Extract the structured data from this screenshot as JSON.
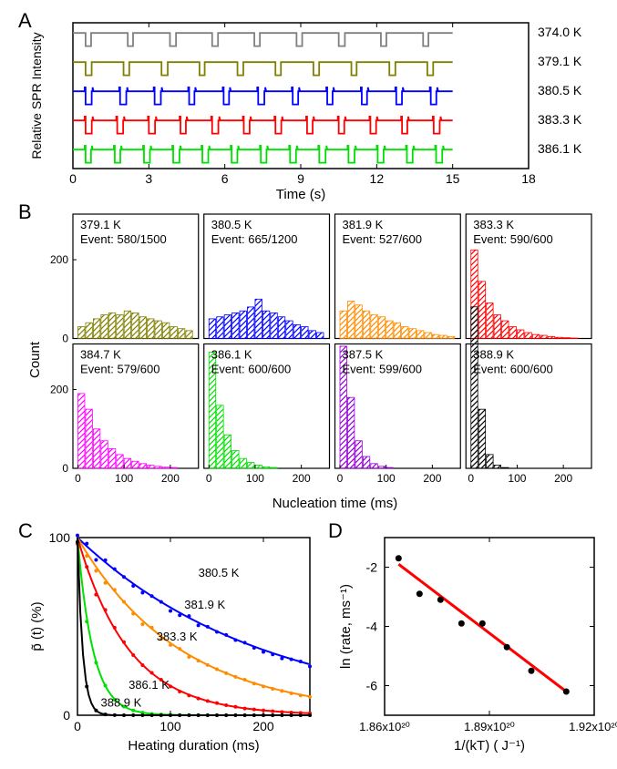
{
  "panelA": {
    "label": "A",
    "ylabel": "Relative SPR Intensity",
    "xlabel": "Time (s)",
    "xlim": [
      0,
      18
    ],
    "xticks": [
      0,
      3,
      6,
      9,
      12,
      15,
      18
    ],
    "traces": [
      {
        "temp": "374.0 K",
        "color": "#808080",
        "y_offset": 4
      },
      {
        "temp": "379.1 K",
        "color": "#808000",
        "y_offset": 3
      },
      {
        "temp": "380.5 K",
        "color": "#0000ff",
        "y_offset": 2
      },
      {
        "temp": "383.3 K",
        "color": "#ff0000",
        "y_offset": 1
      },
      {
        "temp": "386.1 K",
        "color": "#00e000",
        "y_offset": 0
      }
    ],
    "label_fontsize": 14
  },
  "panelB": {
    "label": "B",
    "ylabel": "Count",
    "xlabel": "Nucleation time (ms)",
    "xlim": [
      0,
      250
    ],
    "xticks": [
      0,
      100,
      200
    ],
    "yticks": [
      0,
      200
    ],
    "histograms": [
      {
        "temp": "379.1 K",
        "event": "Event: 580/1500",
        "color": "#808000",
        "bars": [
          30,
          40,
          50,
          60,
          65,
          60,
          70,
          65,
          55,
          50,
          45,
          40,
          30,
          25,
          20
        ]
      },
      {
        "temp": "380.5 K",
        "event": "Event: 665/1200",
        "color": "#0000ff",
        "bars": [
          50,
          55,
          60,
          65,
          70,
          80,
          100,
          70,
          65,
          55,
          45,
          35,
          30,
          20,
          15
        ]
      },
      {
        "temp": "381.9 K",
        "event": "Event: 527/600",
        "color": "#ff8c00",
        "bars": [
          70,
          95,
          85,
          70,
          60,
          55,
          45,
          40,
          30,
          25,
          20,
          15,
          10,
          8,
          5
        ]
      },
      {
        "temp": "383.3 K",
        "event": "Event: 590/600",
        "color": "#ff0000",
        "bars": [
          225,
          145,
          90,
          60,
          45,
          30,
          22,
          15,
          10,
          8,
          5,
          3,
          2,
          1,
          0
        ]
      },
      {
        "temp": "384.7 K",
        "event": "Event: 579/600",
        "color": "#ff00ff",
        "bars": [
          190,
          150,
          100,
          70,
          50,
          35,
          25,
          18,
          12,
          8,
          5,
          3,
          2,
          0,
          0
        ]
      },
      {
        "temp": "386.1 K",
        "event": "Event: 600/600",
        "color": "#00e000",
        "bars": [
          295,
          160,
          85,
          45,
          25,
          15,
          8,
          4,
          2,
          0,
          0,
          0,
          0,
          0,
          0
        ]
      },
      {
        "temp": "387.5 K",
        "event": "Event: 599/600",
        "color": "#9400d3",
        "bars": [
          310,
          180,
          70,
          30,
          12,
          5,
          2,
          0,
          0,
          0,
          0,
          0,
          0,
          0,
          0
        ]
      },
      {
        "temp": "388.9 K",
        "event": "Event: 600/600",
        "color": "#000000",
        "bars": [
          410,
          150,
          35,
          8,
          2,
          0,
          0,
          0,
          0,
          0,
          0,
          0,
          0,
          0,
          0
        ]
      }
    ],
    "label_fontsize": 13
  },
  "panelC": {
    "label": "C",
    "ylabel": "p̃ (t) (%)",
    "xlabel": "Heating duration (ms)",
    "xlim": [
      0,
      250
    ],
    "ylim": [
      0,
      100
    ],
    "xticks": [
      0,
      100,
      200
    ],
    "yticks": [
      0,
      100
    ],
    "curves": [
      {
        "temp": "380.5 K",
        "color": "#0000ff",
        "rate": 0.005
      },
      {
        "temp": "381.9 K",
        "color": "#ff8c00",
        "rate": 0.009
      },
      {
        "temp": "383.3 K",
        "color": "#ff0000",
        "rate": 0.018
      },
      {
        "temp": "386.1 K",
        "color": "#00e000",
        "rate": 0.06
      },
      {
        "temp": "388.9 K",
        "color": "#000000",
        "rate": 0.18
      }
    ],
    "curve_labels": [
      {
        "text": "380.5 K",
        "x": 130,
        "y": 78,
        "color": "#0000ff"
      },
      {
        "text": "381.9 K",
        "x": 115,
        "y": 60,
        "color": "#ff8c00"
      },
      {
        "text": "383.3 K",
        "x": 85,
        "y": 42,
        "color": "#ff0000"
      },
      {
        "text": "386.1 K",
        "x": 55,
        "y": 15,
        "color": "#00e000"
      },
      {
        "text": "388.9 K",
        "x": 25,
        "y": 5,
        "color": "#000000"
      }
    ],
    "label_fontsize": 13
  },
  "panelD": {
    "label": "D",
    "ylabel": "ln (rate, ms⁻¹)",
    "xlabel": "1/(kT) ( J⁻¹)",
    "xlim": [
      1.86e+20,
      1.92e+20
    ],
    "ylim": [
      -7,
      -1
    ],
    "xticks": [
      "1.86x10²⁰",
      "1.89x10²⁰",
      "1.92x10²⁰"
    ],
    "yticks": [
      -6,
      -4,
      -2
    ],
    "points": [
      {
        "x": 1.864e+20,
        "y": -1.7
      },
      {
        "x": 1.87e+20,
        "y": -2.9
      },
      {
        "x": 1.876e+20,
        "y": -3.1
      },
      {
        "x": 1.882e+20,
        "y": -3.9
      },
      {
        "x": 1.888e+20,
        "y": -3.9
      },
      {
        "x": 1.895e+20,
        "y": -4.7
      },
      {
        "x": 1.902e+20,
        "y": -5.5
      },
      {
        "x": 1.912e+20,
        "y": -6.2
      }
    ],
    "fit_color": "#ff0000",
    "point_color": "#000000",
    "label_fontsize": 14
  }
}
